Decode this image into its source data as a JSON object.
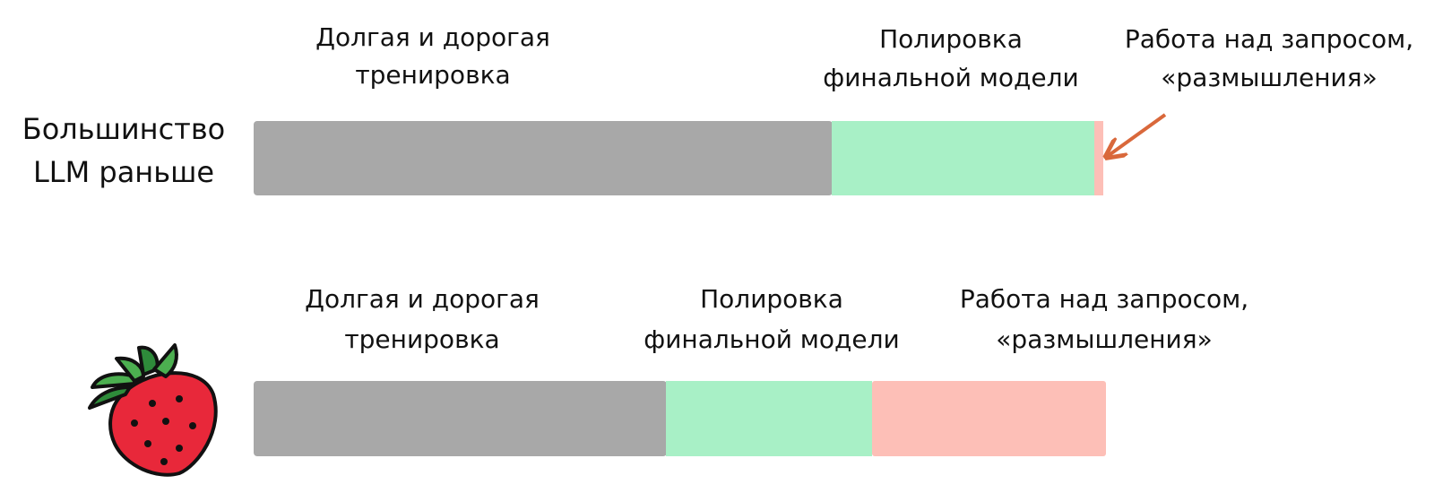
{
  "rows": [
    {
      "label": [
        "Большинство",
        "LLM раньше"
      ],
      "segments": [
        {
          "label": [
            "Долгая и дорогая",
            "тренировка"
          ]
        },
        {
          "label": [
            "Полировка",
            "финальной модели"
          ]
        },
        {
          "label": [
            "Работа над запросом,",
            "«размышления»"
          ]
        }
      ]
    },
    {
      "segments": [
        {
          "label": [
            "Долгая и дорогая",
            "тренировка"
          ]
        },
        {
          "label": [
            "Полировка",
            "финальной модели"
          ]
        },
        {
          "label": [
            "Работа над запросом,",
            "«размышления»"
          ]
        }
      ]
    }
  ]
}
